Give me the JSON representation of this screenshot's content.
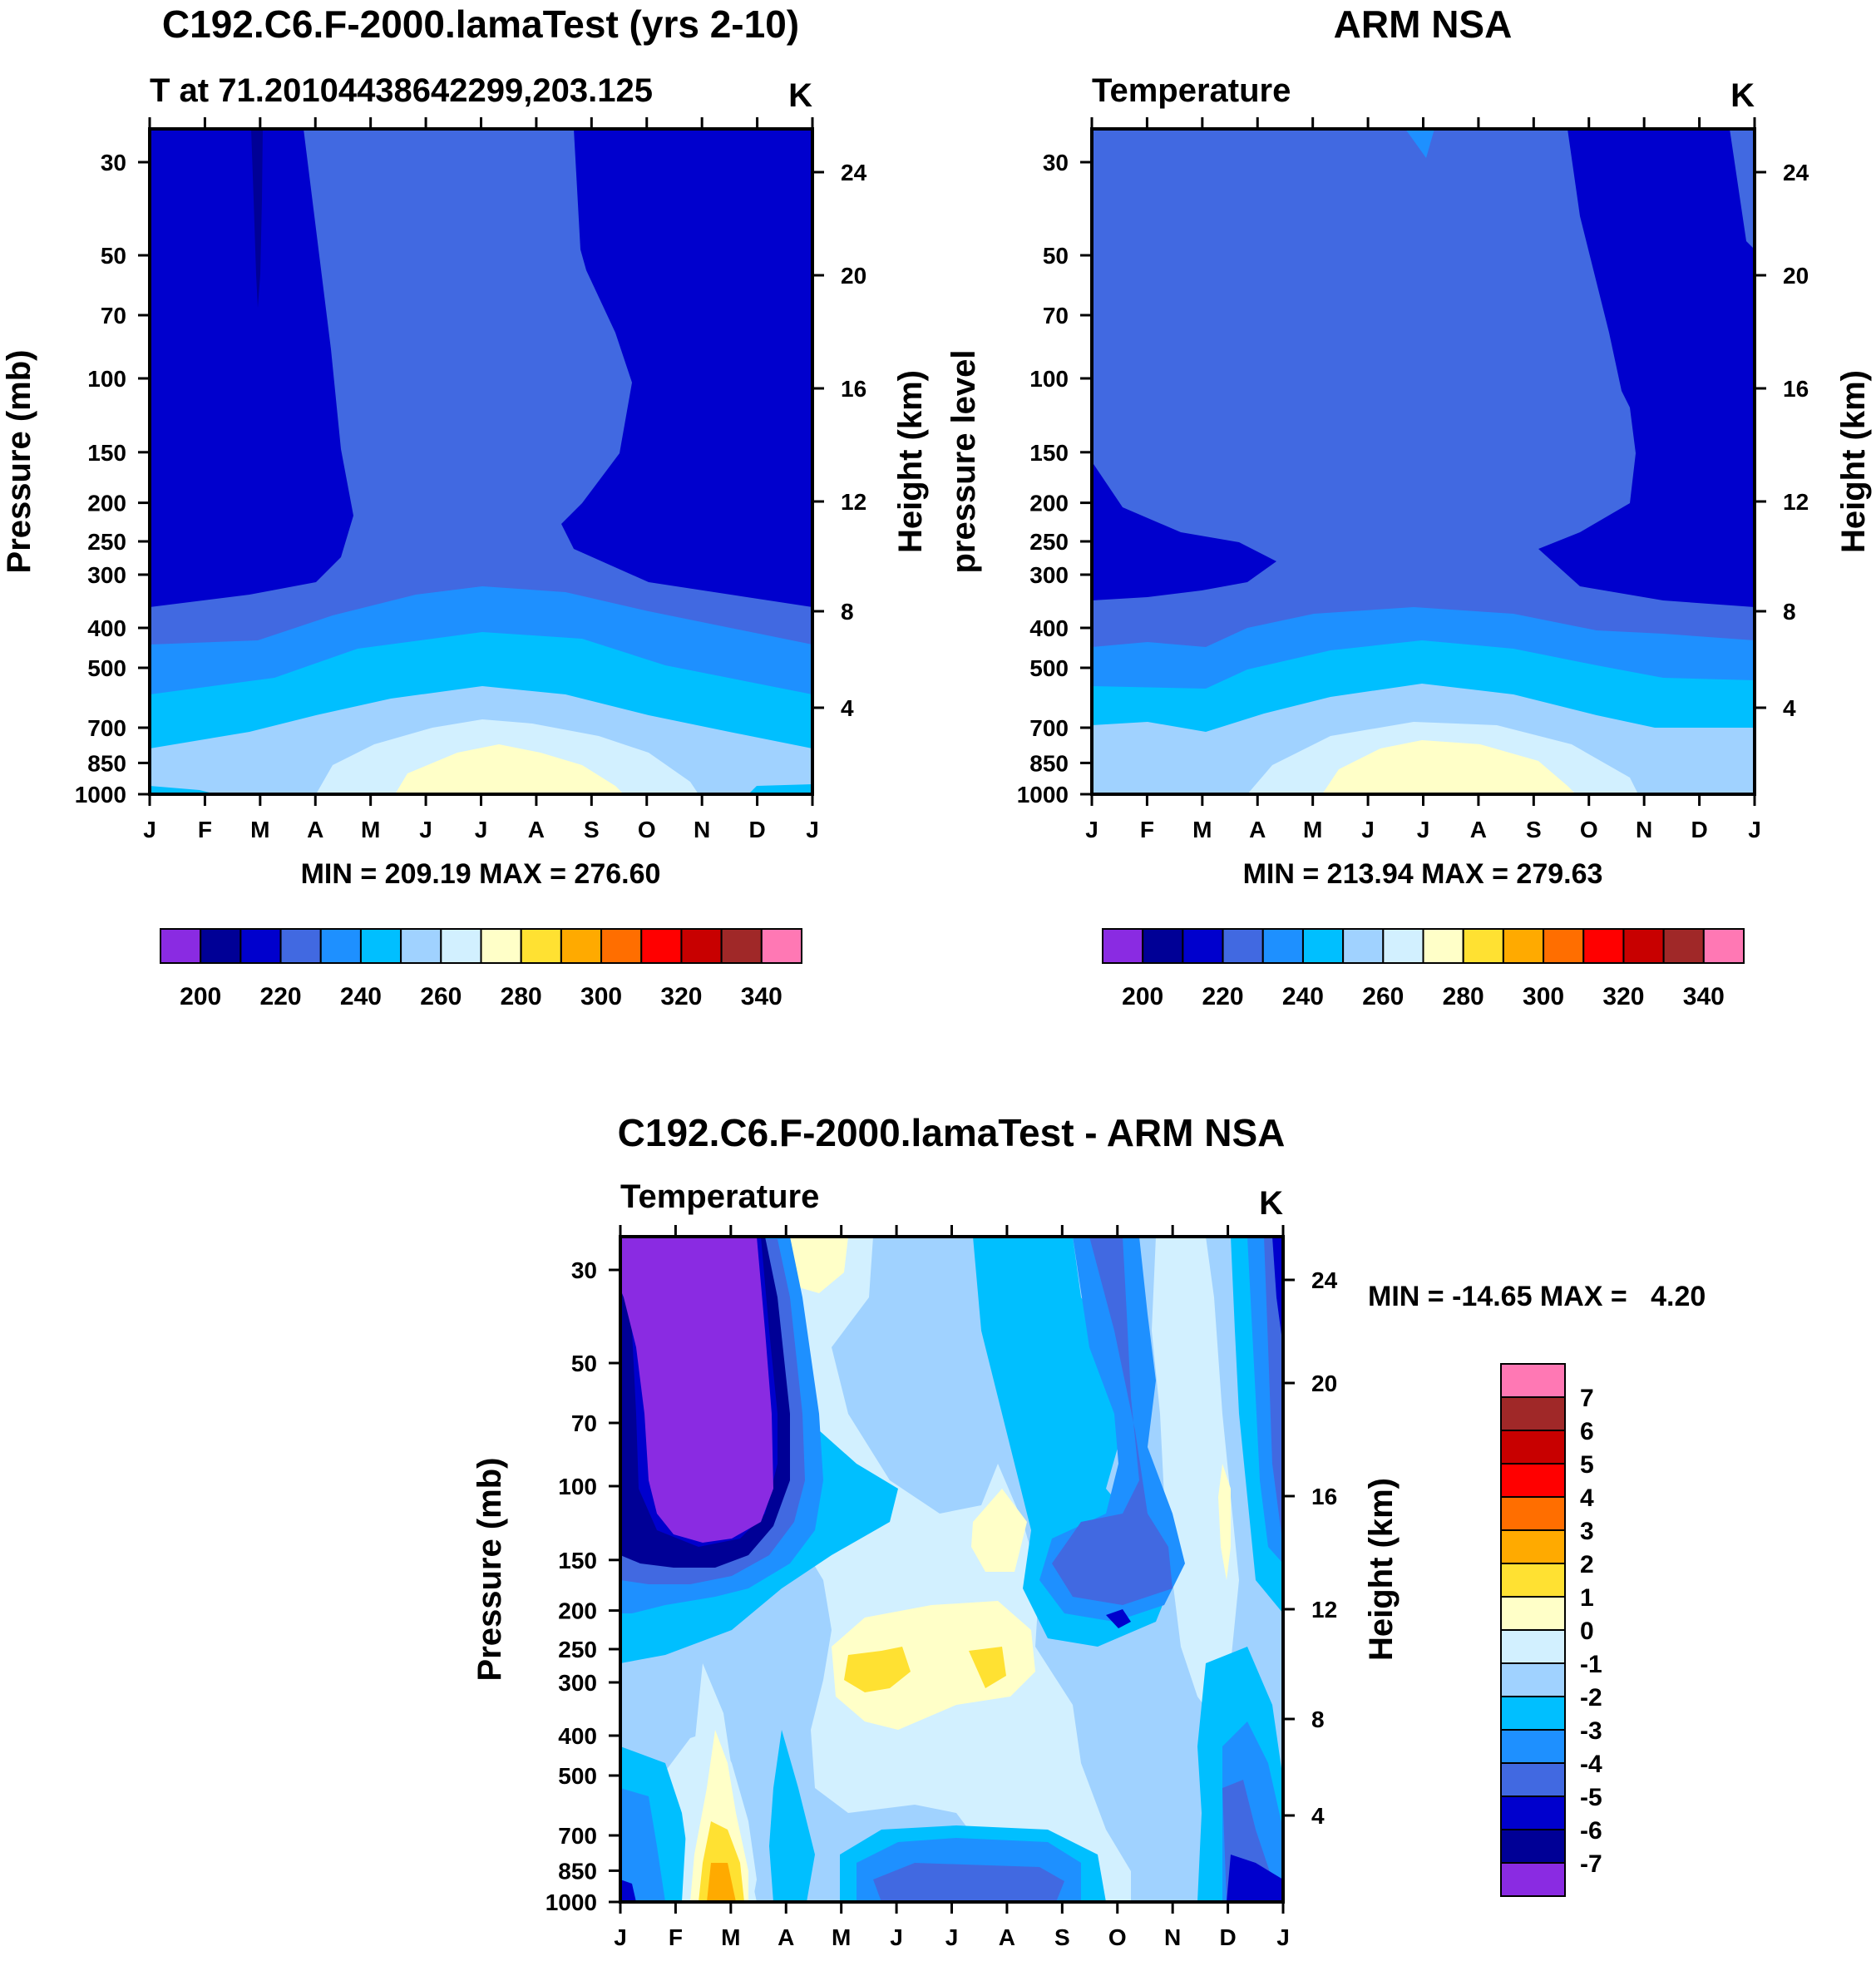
{
  "colors": {
    "abs_levels": [
      "#8A2BE2",
      "#000096",
      "#0000CD",
      "#4169E1",
      "#1E90FF",
      "#00BFFF",
      "#A0D2FF",
      "#D2F0FF",
      "#FFFFC8",
      "#FFE132",
      "#FFAA00",
      "#FF6E00",
      "#FF0000",
      "#C80000",
      "#A02828",
      "#FF78B4"
    ],
    "diff_levels": [
      "#8A2BE2",
      "#000096",
      "#0000CD",
      "#4169E1",
      "#1E90FF",
      "#00BFFF",
      "#A0D2FF",
      "#D2F0FF",
      "#FFFFC8",
      "#FFE132",
      "#FFAA00",
      "#FF6E00",
      "#FF0000",
      "#C80000",
      "#A02828",
      "#FF78B4"
    ]
  },
  "chart_data": [
    {
      "type": "heatmap",
      "id": "model",
      "title": "C192.C6.F-2000.lamaTest (yrs 2-10)",
      "subtitle_left": "T at 71.20104438642299,203.125",
      "subtitle_right": "K",
      "ylabel": "Pressure (mb)",
      "ylabel_right": "Height (km)",
      "x_ticks": [
        "J",
        "F",
        "M",
        "A",
        "M",
        "J",
        "J",
        "A",
        "S",
        "O",
        "N",
        "D",
        "J"
      ],
      "y_ticks_pressure": [
        30,
        50,
        70,
        100,
        150,
        200,
        250,
        300,
        400,
        500,
        700,
        850,
        1000
      ],
      "y_ticks_height": [
        24,
        20,
        16,
        12,
        8,
        4
      ],
      "minmax": "MIN = 209.19 MAX = 276.60",
      "colorbar_labels": [
        "200",
        "220",
        "240",
        "260",
        "280",
        "300",
        "320",
        "340"
      ],
      "zlim": [
        209.19,
        276.6
      ]
    },
    {
      "type": "heatmap",
      "id": "obs",
      "title": "ARM NSA",
      "subtitle_left": "Temperature",
      "subtitle_right": "K",
      "ylabel": "pressure level",
      "ylabel_right": "Height (km)",
      "x_ticks": [
        "J",
        "F",
        "M",
        "A",
        "M",
        "J",
        "J",
        "A",
        "S",
        "O",
        "N",
        "D",
        "J"
      ],
      "y_ticks_pressure": [
        30,
        50,
        70,
        100,
        150,
        200,
        250,
        300,
        400,
        500,
        700,
        850,
        1000
      ],
      "y_ticks_height": [
        24,
        20,
        16,
        12,
        8,
        4
      ],
      "minmax": "MIN = 213.94 MAX = 279.63",
      "colorbar_labels": [
        "200",
        "220",
        "240",
        "260",
        "280",
        "300",
        "320",
        "340"
      ],
      "zlim": [
        213.94,
        279.63
      ]
    },
    {
      "type": "heatmap",
      "id": "diff",
      "title": "C192.C6.F-2000.lamaTest - ARM NSA",
      "subtitle_left": "Temperature",
      "subtitle_right": "K",
      "ylabel": "Pressure (mb)",
      "ylabel_right": "Height (km)",
      "x_ticks": [
        "J",
        "F",
        "M",
        "A",
        "M",
        "J",
        "J",
        "A",
        "S",
        "O",
        "N",
        "D",
        "J"
      ],
      "y_ticks_pressure": [
        30,
        50,
        70,
        100,
        150,
        200,
        250,
        300,
        400,
        500,
        700,
        850,
        1000
      ],
      "y_ticks_height": [
        24,
        20,
        16,
        12,
        8,
        4
      ],
      "minmax": "MIN = -14.65 MAX =   4.20",
      "colorbar_labels": [
        "7",
        "6",
        "5",
        "4",
        "3",
        "2",
        "1",
        "0",
        "-1",
        "-2",
        "-3",
        "-4",
        "-5",
        "-6",
        "-7"
      ],
      "zlim": [
        -14.65,
        4.2
      ]
    }
  ]
}
